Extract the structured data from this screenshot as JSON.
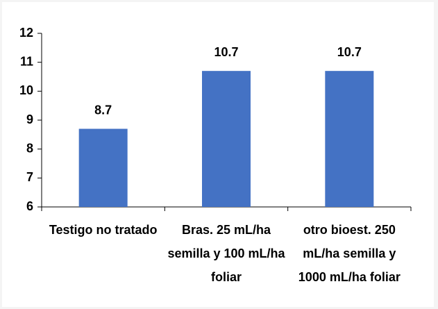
{
  "chart_data": {
    "type": "bar",
    "categories": [
      "Testigo no tratado",
      "Bras. 25 mL/ha semilla y 100 mL/ha foliar",
      "otro bioest. 250 mL/ha semilla y 1000 mL/ha foliar"
    ],
    "values": [
      8.7,
      10.7,
      10.7
    ],
    "color": "#4472c4",
    "ylim": [
      6,
      12
    ],
    "yticks": [
      6,
      7,
      8,
      9,
      10,
      11,
      12
    ]
  }
}
